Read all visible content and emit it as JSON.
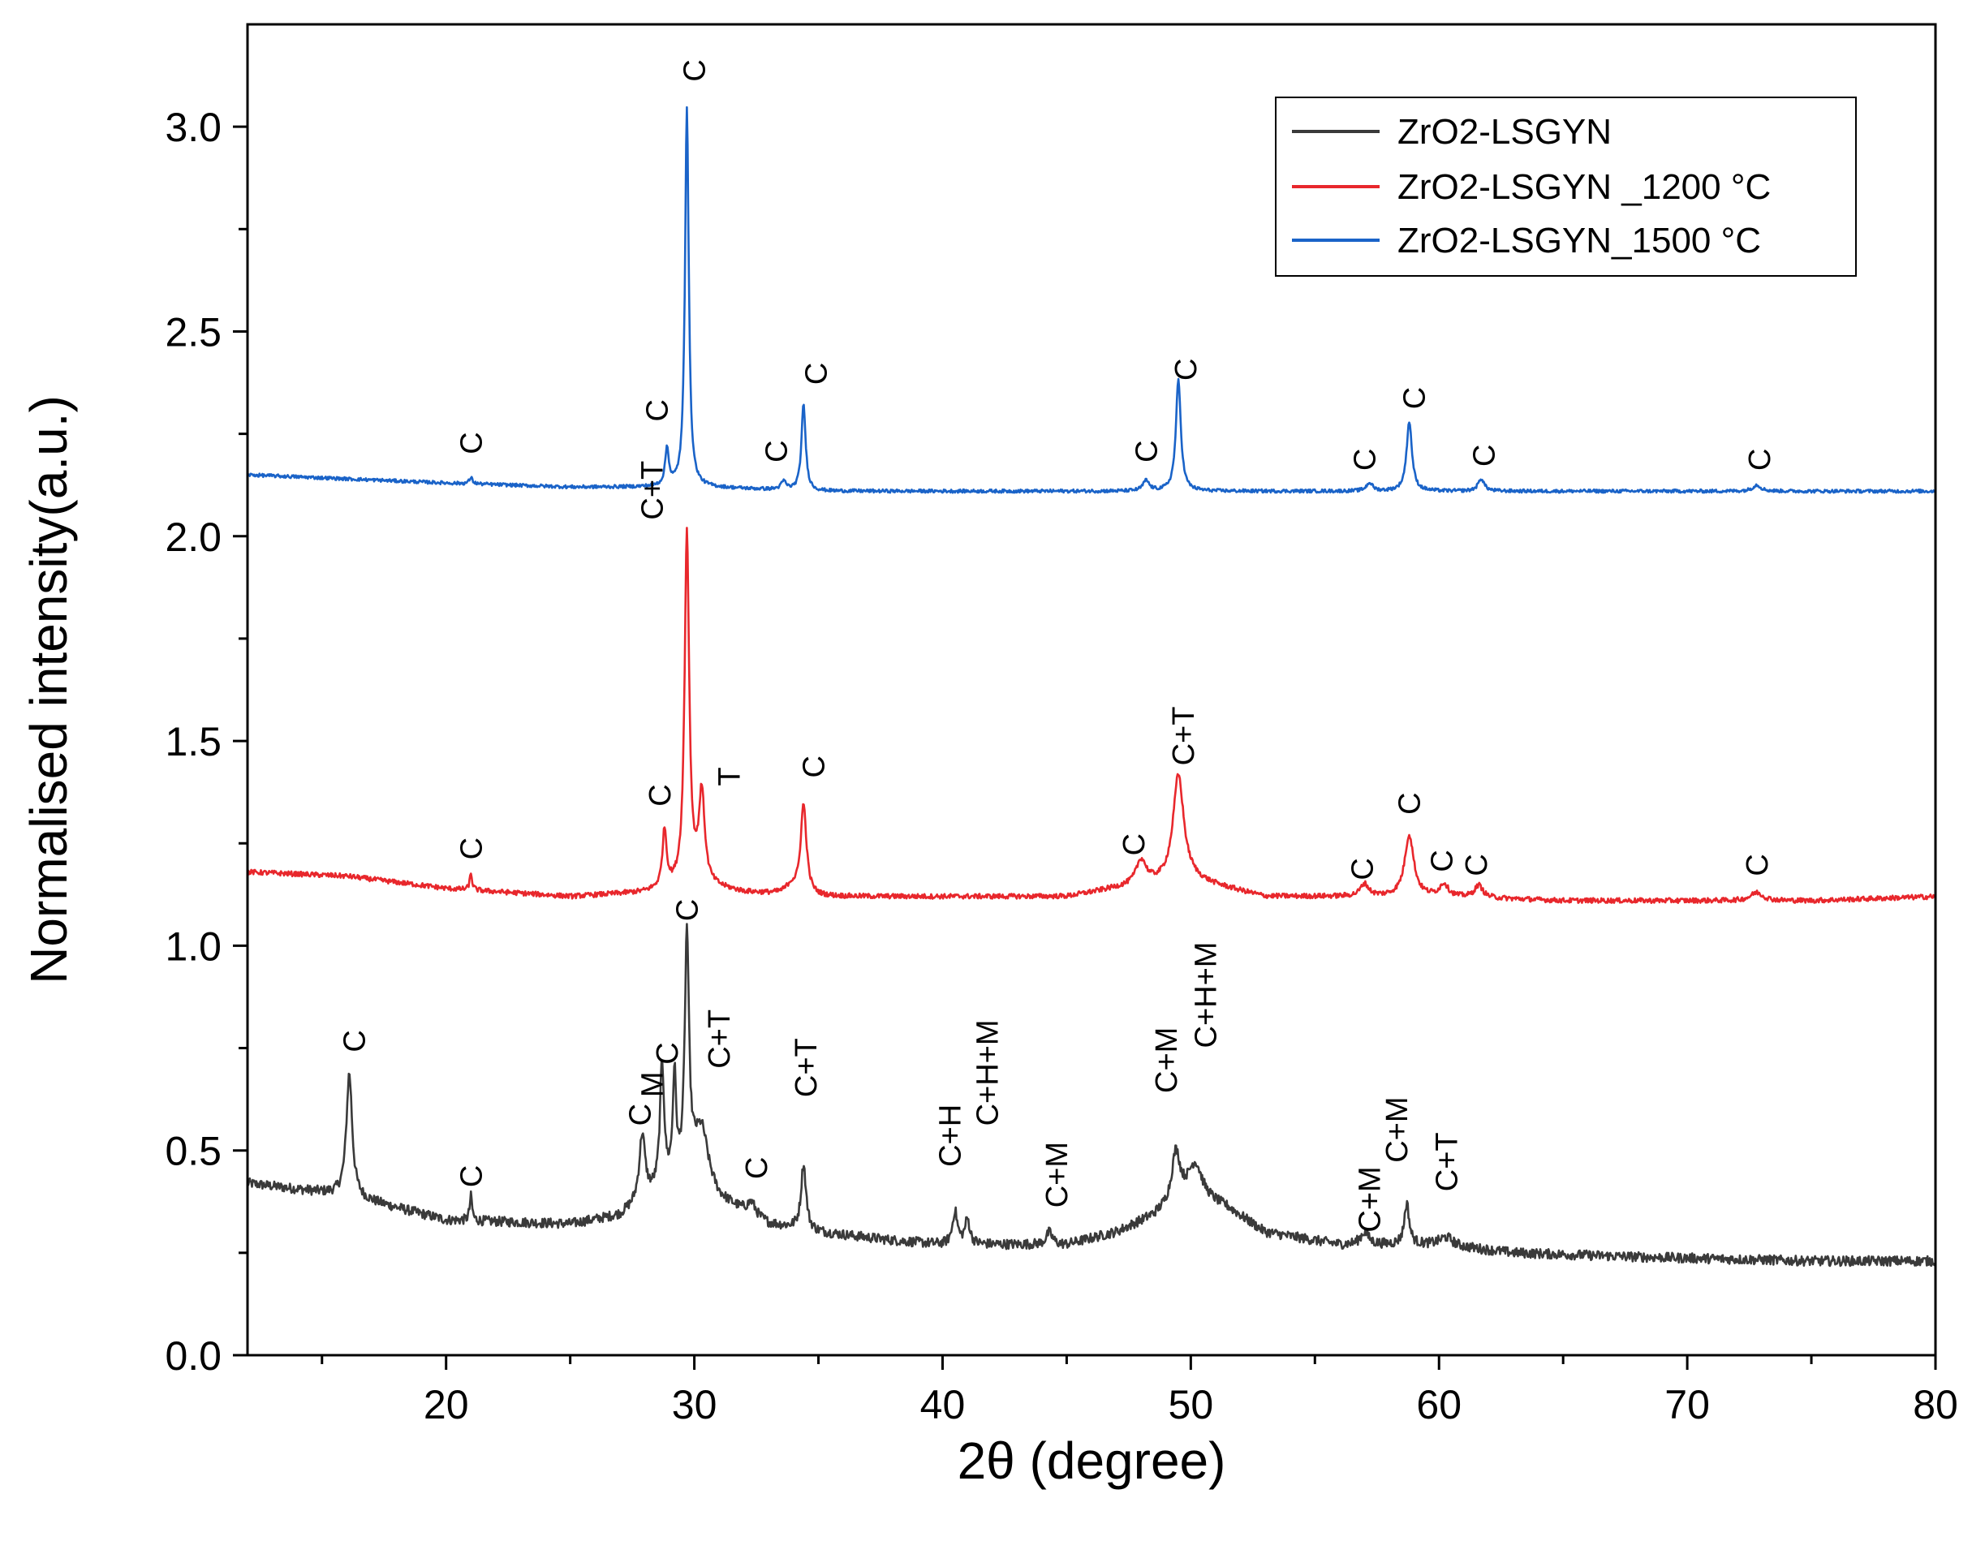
{
  "chart_data": {
    "type": "line",
    "title": "",
    "xlabel": "2θ (degree)",
    "ylabel": "Normalised intensity(a.u.)",
    "xlim": [
      12,
      80
    ],
    "ylim": [
      0,
      3.25
    ],
    "xticks": [
      20,
      30,
      40,
      50,
      60,
      70,
      80
    ],
    "yticks": [
      0.0,
      0.5,
      1.0,
      1.5,
      2.0,
      2.5,
      3.0
    ],
    "ytick_labels": [
      "0.0",
      "0.5",
      "1.0",
      "1.5",
      "2.0",
      "2.5",
      "3.0"
    ],
    "grid": false,
    "legend_position": "top-right",
    "series": [
      {
        "name": "ZrO2-LSGYN",
        "color": "#3a3a3a",
        "baseline": [
          [
            12,
            0.42
          ],
          [
            16,
            0.39
          ],
          [
            20,
            0.33
          ],
          [
            25,
            0.32
          ],
          [
            27,
            0.34
          ],
          [
            28,
            0.38
          ],
          [
            30,
            0.45
          ],
          [
            31,
            0.38
          ],
          [
            33,
            0.32
          ],
          [
            35,
            0.3
          ],
          [
            38,
            0.28
          ],
          [
            40,
            0.27
          ],
          [
            42,
            0.27
          ],
          [
            45,
            0.27
          ],
          [
            47,
            0.3
          ],
          [
            48.5,
            0.34
          ],
          [
            50,
            0.4
          ],
          [
            51.5,
            0.36
          ],
          [
            53,
            0.3
          ],
          [
            56,
            0.27
          ],
          [
            58,
            0.27
          ],
          [
            60,
            0.27
          ],
          [
            63,
            0.25
          ],
          [
            68,
            0.24
          ],
          [
            75,
            0.23
          ],
          [
            80,
            0.23
          ]
        ],
        "peaks": [
          [
            16.1,
            0.3,
            0.14
          ],
          [
            21.0,
            0.06,
            0.06
          ],
          [
            27.9,
            0.16,
            0.14
          ],
          [
            28.7,
            0.3,
            0.1
          ],
          [
            29.2,
            0.25,
            0.08
          ],
          [
            29.7,
            0.58,
            0.1
          ],
          [
            30.3,
            0.12,
            0.3
          ],
          [
            32.3,
            0.03,
            0.2
          ],
          [
            34.4,
            0.16,
            0.12
          ],
          [
            40.5,
            0.08,
            0.12
          ],
          [
            41.0,
            0.06,
            0.12
          ],
          [
            44.3,
            0.03,
            0.15
          ],
          [
            49.4,
            0.12,
            0.2
          ],
          [
            50.2,
            0.07,
            0.3
          ],
          [
            57.0,
            0.03,
            0.2
          ],
          [
            58.7,
            0.1,
            0.12
          ],
          [
            60.3,
            0.02,
            0.3
          ]
        ],
        "noise": 0.012
      },
      {
        "name": "ZrO2-LSGYN _1200 °C",
        "color": "#e8272c",
        "baseline": [
          [
            12,
            1.18
          ],
          [
            16,
            1.17
          ],
          [
            20,
            1.14
          ],
          [
            25,
            1.12
          ],
          [
            28,
            1.13
          ],
          [
            30,
            1.15
          ],
          [
            32,
            1.13
          ],
          [
            35,
            1.12
          ],
          [
            40,
            1.12
          ],
          [
            45,
            1.12
          ],
          [
            47,
            1.14
          ],
          [
            50,
            1.16
          ],
          [
            53,
            1.12
          ],
          [
            56,
            1.12
          ],
          [
            60,
            1.12
          ],
          [
            65,
            1.11
          ],
          [
            70,
            1.11
          ],
          [
            75,
            1.11
          ],
          [
            80,
            1.12
          ]
        ],
        "peaks": [
          [
            21.0,
            0.04,
            0.06
          ],
          [
            28.8,
            0.14,
            0.1
          ],
          [
            29.7,
            0.86,
            0.11
          ],
          [
            30.3,
            0.22,
            0.14
          ],
          [
            33.9,
            0.02,
            0.25
          ],
          [
            34.4,
            0.22,
            0.14
          ],
          [
            48.0,
            0.06,
            0.25
          ],
          [
            49.5,
            0.26,
            0.26
          ],
          [
            57.0,
            0.03,
            0.2
          ],
          [
            58.8,
            0.15,
            0.22
          ],
          [
            60.2,
            0.03,
            0.2
          ],
          [
            61.6,
            0.03,
            0.2
          ],
          [
            72.8,
            0.02,
            0.3
          ]
        ],
        "noise": 0.006
      },
      {
        "name": "ZrO2-LSGYN_1500 °C",
        "color": "#1a63c8",
        "baseline": [
          [
            12,
            2.15
          ],
          [
            16,
            2.14
          ],
          [
            20,
            2.13
          ],
          [
            25,
            2.12
          ],
          [
            30,
            2.12
          ],
          [
            35,
            2.11
          ],
          [
            40,
            2.11
          ],
          [
            45,
            2.11
          ],
          [
            50,
            2.11
          ],
          [
            55,
            2.11
          ],
          [
            60,
            2.11
          ],
          [
            65,
            2.11
          ],
          [
            70,
            2.11
          ],
          [
            75,
            2.11
          ],
          [
            80,
            2.11
          ]
        ],
        "peaks": [
          [
            21.0,
            0.015,
            0.08
          ],
          [
            28.9,
            0.09,
            0.09
          ],
          [
            29.7,
            0.93,
            0.09
          ],
          [
            33.6,
            0.02,
            0.12
          ],
          [
            34.4,
            0.21,
            0.1
          ],
          [
            48.2,
            0.025,
            0.15
          ],
          [
            49.5,
            0.27,
            0.12
          ],
          [
            57.2,
            0.02,
            0.15
          ],
          [
            58.8,
            0.17,
            0.13
          ],
          [
            61.7,
            0.03,
            0.15
          ],
          [
            72.8,
            0.015,
            0.2
          ]
        ],
        "noise": 0.004
      }
    ],
    "annotations": [
      {
        "text": "C",
        "x": 16.3,
        "y": 0.74
      },
      {
        "text": "C",
        "x": 21.0,
        "y": 0.41
      },
      {
        "text": "C",
        "x": 27.8,
        "y": 0.56
      },
      {
        "text": "M",
        "x": 28.3,
        "y": 0.63
      },
      {
        "text": "C",
        "x": 28.9,
        "y": 0.71
      },
      {
        "text": "C+T",
        "x": 31.0,
        "y": 0.7
      },
      {
        "text": "C",
        "x": 29.7,
        "y": 1.06
      },
      {
        "text": "C",
        "x": 32.5,
        "y": 0.43
      },
      {
        "text": "C+T",
        "x": 34.5,
        "y": 0.63
      },
      {
        "text": "C+H",
        "x": 40.3,
        "y": 0.46
      },
      {
        "text": "C+H+M",
        "x": 41.8,
        "y": 0.56
      },
      {
        "text": "C+M",
        "x": 44.6,
        "y": 0.36
      },
      {
        "text": "C+M",
        "x": 49.0,
        "y": 0.64
      },
      {
        "text": "C+H+M",
        "x": 50.6,
        "y": 0.75
      },
      {
        "text": "C+M",
        "x": 57.2,
        "y": 0.3
      },
      {
        "text": "C+M",
        "x": 58.3,
        "y": 0.47
      },
      {
        "text": "C+T",
        "x": 60.3,
        "y": 0.4
      },
      {
        "text": "C",
        "x": 21.0,
        "y": 1.21
      },
      {
        "text": "C",
        "x": 28.6,
        "y": 1.34
      },
      {
        "text": "T",
        "x": 31.4,
        "y": 1.39
      },
      {
        "text": "C",
        "x": 34.8,
        "y": 1.41
      },
      {
        "text": "C",
        "x": 47.7,
        "y": 1.22
      },
      {
        "text": "C+T",
        "x": 49.7,
        "y": 1.44
      },
      {
        "text": "C",
        "x": 56.9,
        "y": 1.16
      },
      {
        "text": "C",
        "x": 58.8,
        "y": 1.32
      },
      {
        "text": "C",
        "x": 60.1,
        "y": 1.18
      },
      {
        "text": "C",
        "x": 61.5,
        "y": 1.17
      },
      {
        "text": "C",
        "x": 72.8,
        "y": 1.17
      },
      {
        "text": "C+T",
        "x": 28.3,
        "y": 2.04
      },
      {
        "text": "C",
        "x": 21.0,
        "y": 2.2
      },
      {
        "text": "C",
        "x": 28.5,
        "y": 2.28
      },
      {
        "text": "C",
        "x": 30.0,
        "y": 3.11
      },
      {
        "text": "C",
        "x": 33.3,
        "y": 2.18
      },
      {
        "text": "C",
        "x": 34.9,
        "y": 2.37
      },
      {
        "text": "C",
        "x": 48.2,
        "y": 2.18
      },
      {
        "text": "C",
        "x": 49.8,
        "y": 2.38
      },
      {
        "text": "C",
        "x": 57.0,
        "y": 2.16
      },
      {
        "text": "C",
        "x": 59.0,
        "y": 2.31
      },
      {
        "text": "C",
        "x": 61.8,
        "y": 2.17
      },
      {
        "text": "C",
        "x": 72.9,
        "y": 2.16
      }
    ]
  }
}
